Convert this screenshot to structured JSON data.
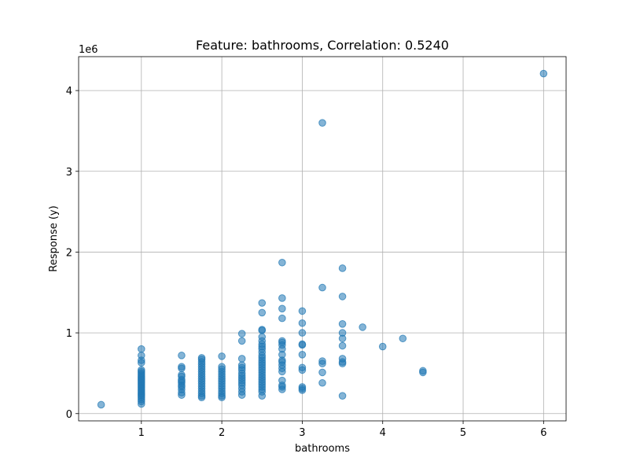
{
  "chart_data": {
    "type": "scatter",
    "title": "Feature: bathrooms, Correlation: 0.5240",
    "xlabel": "bathrooms",
    "ylabel": "Response (y)",
    "y_offset_label": "1e6",
    "xlim": [
      0.22,
      6.28
    ],
    "ylim": [
      -90000,
      4420000
    ],
    "x_ticks": [
      1,
      2,
      3,
      4,
      5,
      6
    ],
    "x_tick_labels": [
      "1",
      "2",
      "3",
      "4",
      "5",
      "6"
    ],
    "y_ticks": [
      0,
      1000000,
      2000000,
      3000000,
      4000000
    ],
    "y_tick_labels": [
      "0",
      "1",
      "2",
      "3",
      "4"
    ],
    "grid": true,
    "point_color": "#1f77b4",
    "points": [
      [
        0.5,
        110000
      ],
      [
        1,
        800000
      ],
      [
        1,
        720000
      ],
      [
        1,
        660000
      ],
      [
        1,
        630000
      ],
      [
        1,
        540000
      ],
      [
        1,
        520000
      ],
      [
        1,
        500000
      ],
      [
        1,
        480000
      ],
      [
        1,
        460000
      ],
      [
        1,
        440000
      ],
      [
        1,
        420000
      ],
      [
        1,
        400000
      ],
      [
        1,
        380000
      ],
      [
        1,
        360000
      ],
      [
        1,
        340000
      ],
      [
        1,
        320000
      ],
      [
        1,
        300000
      ],
      [
        1,
        280000
      ],
      [
        1,
        260000
      ],
      [
        1,
        240000
      ],
      [
        1,
        220000
      ],
      [
        1,
        200000
      ],
      [
        1,
        175000
      ],
      [
        1,
        150000
      ],
      [
        1,
        120000
      ],
      [
        1.5,
        720000
      ],
      [
        1.5,
        580000
      ],
      [
        1.5,
        560000
      ],
      [
        1.5,
        480000
      ],
      [
        1.5,
        460000
      ],
      [
        1.5,
        420000
      ],
      [
        1.5,
        400000
      ],
      [
        1.5,
        380000
      ],
      [
        1.5,
        350000
      ],
      [
        1.5,
        330000
      ],
      [
        1.5,
        300000
      ],
      [
        1.5,
        260000
      ],
      [
        1.5,
        230000
      ],
      [
        1.75,
        690000
      ],
      [
        1.75,
        670000
      ],
      [
        1.75,
        640000
      ],
      [
        1.75,
        610000
      ],
      [
        1.75,
        580000
      ],
      [
        1.75,
        550000
      ],
      [
        1.75,
        520000
      ],
      [
        1.75,
        490000
      ],
      [
        1.75,
        460000
      ],
      [
        1.75,
        430000
      ],
      [
        1.75,
        400000
      ],
      [
        1.75,
        370000
      ],
      [
        1.75,
        340000
      ],
      [
        1.75,
        310000
      ],
      [
        1.75,
        280000
      ],
      [
        1.75,
        250000
      ],
      [
        1.75,
        220000
      ],
      [
        1.75,
        200000
      ],
      [
        2,
        710000
      ],
      [
        2,
        580000
      ],
      [
        2,
        550000
      ],
      [
        2,
        520000
      ],
      [
        2,
        490000
      ],
      [
        2,
        460000
      ],
      [
        2,
        430000
      ],
      [
        2,
        400000
      ],
      [
        2,
        370000
      ],
      [
        2,
        340000
      ],
      [
        2,
        310000
      ],
      [
        2,
        280000
      ],
      [
        2,
        250000
      ],
      [
        2,
        220000
      ],
      [
        2,
        200000
      ],
      [
        2.25,
        990000
      ],
      [
        2.25,
        900000
      ],
      [
        2.25,
        680000
      ],
      [
        2.25,
        600000
      ],
      [
        2.25,
        570000
      ],
      [
        2.25,
        540000
      ],
      [
        2.25,
        500000
      ],
      [
        2.25,
        470000
      ],
      [
        2.25,
        440000
      ],
      [
        2.25,
        410000
      ],
      [
        2.25,
        380000
      ],
      [
        2.25,
        350000
      ],
      [
        2.25,
        310000
      ],
      [
        2.25,
        270000
      ],
      [
        2.25,
        230000
      ],
      [
        2.5,
        1370000
      ],
      [
        2.5,
        1250000
      ],
      [
        2.5,
        1040000
      ],
      [
        2.5,
        1030000
      ],
      [
        2.5,
        950000
      ],
      [
        2.5,
        900000
      ],
      [
        2.5,
        860000
      ],
      [
        2.5,
        830000
      ],
      [
        2.5,
        800000
      ],
      [
        2.5,
        760000
      ],
      [
        2.5,
        720000
      ],
      [
        2.5,
        690000
      ],
      [
        2.5,
        660000
      ],
      [
        2.5,
        630000
      ],
      [
        2.5,
        600000
      ],
      [
        2.5,
        570000
      ],
      [
        2.5,
        540000
      ],
      [
        2.5,
        510000
      ],
      [
        2.5,
        480000
      ],
      [
        2.5,
        450000
      ],
      [
        2.5,
        420000
      ],
      [
        2.5,
        390000
      ],
      [
        2.5,
        360000
      ],
      [
        2.5,
        330000
      ],
      [
        2.5,
        300000
      ],
      [
        2.5,
        270000
      ],
      [
        2.5,
        220000
      ],
      [
        2.75,
        1870000
      ],
      [
        2.75,
        1430000
      ],
      [
        2.75,
        1300000
      ],
      [
        2.75,
        1180000
      ],
      [
        2.75,
        900000
      ],
      [
        2.75,
        880000
      ],
      [
        2.75,
        850000
      ],
      [
        2.75,
        800000
      ],
      [
        2.75,
        730000
      ],
      [
        2.75,
        660000
      ],
      [
        2.75,
        640000
      ],
      [
        2.75,
        600000
      ],
      [
        2.75,
        560000
      ],
      [
        2.75,
        520000
      ],
      [
        2.75,
        410000
      ],
      [
        2.75,
        350000
      ],
      [
        2.75,
        330000
      ],
      [
        2.75,
        300000
      ],
      [
        3,
        1270000
      ],
      [
        3,
        1120000
      ],
      [
        3,
        1000000
      ],
      [
        3,
        860000
      ],
      [
        3,
        850000
      ],
      [
        3,
        730000
      ],
      [
        3,
        570000
      ],
      [
        3,
        540000
      ],
      [
        3,
        330000
      ],
      [
        3,
        310000
      ],
      [
        3,
        290000
      ],
      [
        3.25,
        3600000
      ],
      [
        3.25,
        1560000
      ],
      [
        3.25,
        650000
      ],
      [
        3.25,
        620000
      ],
      [
        3.25,
        510000
      ],
      [
        3.25,
        380000
      ],
      [
        3.5,
        1800000
      ],
      [
        3.5,
        1450000
      ],
      [
        3.5,
        1110000
      ],
      [
        3.5,
        1000000
      ],
      [
        3.5,
        930000
      ],
      [
        3.5,
        840000
      ],
      [
        3.5,
        680000
      ],
      [
        3.5,
        640000
      ],
      [
        3.5,
        620000
      ],
      [
        3.5,
        220000
      ],
      [
        3.75,
        1070000
      ],
      [
        4,
        830000
      ],
      [
        4.25,
        930000
      ],
      [
        4.5,
        530000
      ],
      [
        4.5,
        510000
      ],
      [
        6,
        4210000
      ]
    ]
  }
}
